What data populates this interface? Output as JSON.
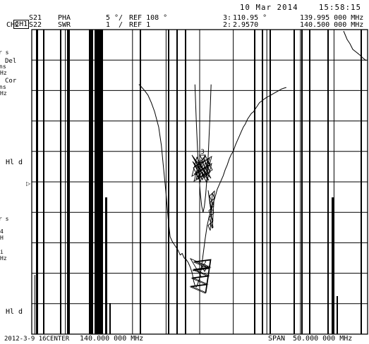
{
  "datetime": {
    "date": "10 Mar 2014",
    "time": "15:58:15"
  },
  "channels": [
    {
      "name": "CH1",
      "param": "S21",
      "format": "PHA",
      "scale": "5 °/",
      "reference": "REF 108 °",
      "active": true
    },
    {
      "name": "CH2",
      "param": "S22",
      "format": "SWR",
      "scale": "1  /",
      "reference": "REF 1",
      "active": false
    }
  ],
  "markers_readout": [
    {
      "label": "3:",
      "value": "110.95 °",
      "freq": "139.995 000 MHz"
    },
    {
      "label": "2:",
      "value": "2.9570",
      "freq": "140.500 000 MHz"
    }
  ],
  "markers_on_trace": [
    "3",
    "2"
  ],
  "ref_indicator": "▷",
  "left_annotations": {
    "top_fragments": [
      "r s",
      "Del",
      "ns",
      "Hz",
      "Cor",
      "ns",
      "Hz"
    ],
    "hld_1": "Hl d",
    "mid_fragments": [
      "r s",
      "4",
      "H",
      "i",
      "Hz"
    ],
    "hld_2": "Hl d"
  },
  "footer": {
    "stimulus_prefix": "2012-3-9 16CENTER",
    "center": "140.000 000 MHz",
    "span_label": "SPAN",
    "span": "50.000 000 MHz"
  },
  "colors": {
    "background": "#ffffff",
    "ink": "#000000"
  },
  "grid": {
    "divisions_x": 10,
    "divisions_y": 10
  },
  "chart_data": {
    "type": "line",
    "x_unit": "MHz",
    "x_range": [
      115.0,
      165.0
    ],
    "center": 140.0,
    "span": 50.0,
    "series": [
      {
        "x": [
          130.95,
          131.2,
          131.8,
          132.3,
          132.8,
          133.3,
          133.9,
          134.3,
          134.6,
          135.0,
          135.3,
          135.6,
          135.9,
          136.2,
          136.5,
          136.8,
          137.1,
          137.4,
          137.7,
          138.0,
          138.3,
          138.6,
          138.9,
          139.1,
          139.3,
          139.5,
          139.7,
          139.95,
          140.2,
          140.5,
          140.8,
          141.1,
          141.4,
          141.7,
          142.0,
          142.3,
          142.6,
          142.9,
          143.2,
          143.5,
          143.8,
          144.1,
          144.4,
          144.7,
          145.0,
          145.3,
          145.6,
          145.9,
          146.2,
          146.5,
          146.8,
          147.1,
          147.4,
          147.7,
          148.0,
          148.3,
          148.6,
          148.9,
          149.2,
          149.5,
          149.8,
          150.2,
          150.6,
          151.0,
          151.4,
          151.8,
          152.2,
          152.6,
          152.9
        ],
        "y": [
          112.0,
          111.5,
          110.0,
          108.5,
          106.0,
          103.0,
          98.0,
          92.0,
          85.0,
          76.0,
          68.0,
          62.0,
          60.5,
          59.5,
          58.5,
          57.5,
          56.0,
          56.5,
          55.0,
          54.5,
          53.5,
          52.0,
          50.0,
          47.5,
          46.0,
          45.5,
          46.5,
          48.0,
          51.0,
          56.0,
          61.0,
          65.5,
          68.5,
          71.0,
          73.0,
          75.0,
          77.5,
          79.0,
          80.5,
          82.0,
          84.0,
          85.5,
          87.5,
          89.0,
          90.0,
          92.0,
          93.5,
          95.0,
          96.5,
          98.0,
          99.0,
          100.5,
          101.5,
          102.5,
          103.0,
          104.0,
          105.0,
          106.0,
          106.5,
          107.0,
          107.5,
          108.0,
          108.5,
          109.0,
          109.5,
          110.0,
          110.5,
          110.8,
          111.0
        ]
      },
      {
        "x": [
          139.3,
          139.5,
          139.7,
          139.9,
          140.1,
          140.3,
          140.5,
          140.7,
          140.9,
          141.1,
          141.3,
          141.5,
          141.7
        ],
        "y": [
          112.0,
          100.0,
          90.0,
          82.0,
          76.0,
          72.0,
          70.0,
          72.0,
          76.0,
          82.0,
          90.0,
          100.0,
          112.0
        ]
      }
    ]
  }
}
